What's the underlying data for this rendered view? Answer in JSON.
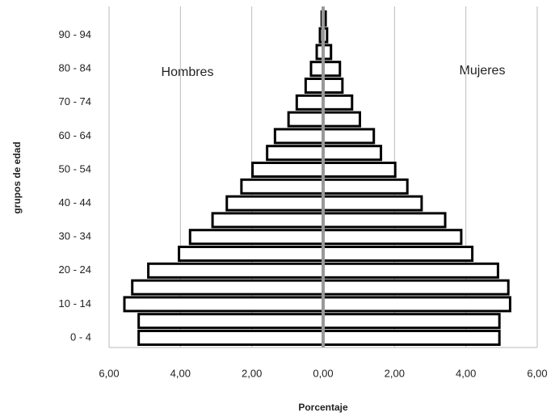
{
  "chart_data": {
    "type": "pyramid",
    "x_label": "Porcentaje",
    "y_label": "grupos de edad",
    "annotations": [
      "Hombres",
      "Mujeres"
    ],
    "categories": [
      "0 - 4",
      null,
      "10 - 14",
      null,
      "20 - 24",
      null,
      "30 - 34",
      null,
      "40 - 44",
      null,
      "50 - 54",
      null,
      "60 - 64",
      null,
      "70 - 74",
      null,
      "80 - 84",
      null,
      "90 - 94",
      null
    ],
    "series": [
      {
        "name": "Hombres",
        "color": "#ffffff",
        "values": [
          5.17,
          5.17,
          5.57,
          5.35,
          4.9,
          4.04,
          3.73,
          3.1,
          2.7,
          2.29,
          1.98,
          1.57,
          1.35,
          0.97,
          0.74,
          0.49,
          0.34,
          0.18,
          0.09,
          0.04
        ]
      },
      {
        "name": "Mujeres",
        "color": "#ffffff",
        "values": [
          4.94,
          4.94,
          5.24,
          5.19,
          4.9,
          4.18,
          3.87,
          3.42,
          2.76,
          2.36,
          2.02,
          1.62,
          1.42,
          1.03,
          0.81,
          0.54,
          0.47,
          0.22,
          0.11,
          0.07
        ]
      }
    ],
    "xlim": [
      -6,
      6
    ],
    "xticks": [
      {
        "value": -6,
        "label": "6,00"
      },
      {
        "value": -4,
        "label": "4,00"
      },
      {
        "value": -2,
        "label": "2,00"
      },
      {
        "value": 0,
        "label": "0,00"
      },
      {
        "value": 2,
        "label": "2,00"
      },
      {
        "value": 4,
        "label": "4,00"
      },
      {
        "value": 6,
        "label": "6,00"
      }
    ],
    "grid": true
  }
}
